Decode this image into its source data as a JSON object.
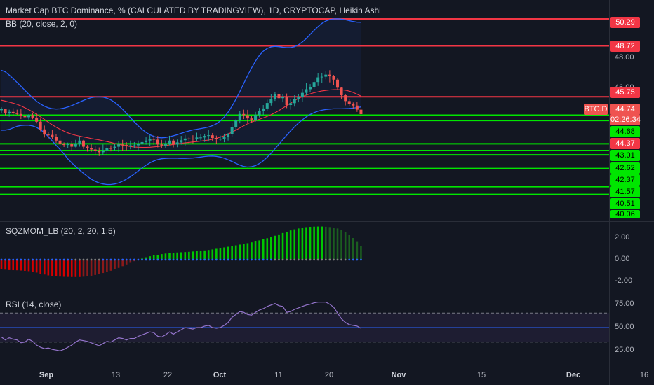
{
  "header": {
    "title": "Market Cap BTC Dominance, % (CALCULATED BY TRADINGVIEW), 1D, CRYPTOCAP, Heikin Ashi",
    "bb_label": "BB (20, close, 2, 0)",
    "sqzmom_label": "SQZMOM_LB (20, 2, 20, 1.5)",
    "rsi_label": "RSI (14, close)"
  },
  "price_axis": {
    "ticks": [
      "48.00",
      "46.00"
    ],
    "tags": [
      {
        "text": "50.29",
        "bg": "#f23645",
        "fg": "#ffffff"
      },
      {
        "text": "48.72",
        "bg": "#f23645",
        "fg": "#ffffff"
      },
      {
        "text": "45.75",
        "bg": "#f23645",
        "fg": "#ffffff"
      },
      {
        "text": "44.74",
        "bg": "#ef5350",
        "fg": "#ffffff"
      },
      {
        "text": "02:26:34",
        "bg": "#ef5350",
        "fg": "#ffffff"
      },
      {
        "text": "44.68",
        "bg": "#00e600",
        "fg": "#000000"
      },
      {
        "text": "44.37",
        "bg": "#f23645",
        "fg": "#ffffff"
      },
      {
        "text": "43.01",
        "bg": "#00e600",
        "fg": "#000000"
      },
      {
        "text": "42.62",
        "bg": "#00e600",
        "fg": "#000000"
      },
      {
        "text": "42.37",
        "bg": "#00e600",
        "fg": "#000000"
      },
      {
        "text": "41.57",
        "bg": "#00e600",
        "fg": "#000000"
      },
      {
        "text": "40.51",
        "bg": "#00e600",
        "fg": "#000000"
      },
      {
        "text": "40.06",
        "bg": "#00e600",
        "fg": "#000000"
      }
    ],
    "symbol_tag": "BTC.D"
  },
  "sqz_axis": [
    "2.00",
    "0.00",
    "-2.00"
  ],
  "rsi_axis": [
    "75.00",
    "50.00",
    "25.00"
  ],
  "time_axis": [
    {
      "label": "Sep",
      "bold": true
    },
    {
      "label": "13",
      "bold": false
    },
    {
      "label": "22",
      "bold": false
    },
    {
      "label": "Oct",
      "bold": true
    },
    {
      "label": "11",
      "bold": false
    },
    {
      "label": "20",
      "bold": false
    },
    {
      "label": "Nov",
      "bold": true
    },
    {
      "label": "15",
      "bold": false
    },
    {
      "label": "Dec",
      "bold": true
    },
    {
      "label": "16",
      "bold": false
    }
  ],
  "colors": {
    "background": "#131722",
    "up": "#26a69a",
    "down": "#ef5350",
    "bb": "#2962ff",
    "basis": "#f23645",
    "resistance": "#f23645",
    "support": "#00e600",
    "rsi": "#9575cd"
  },
  "chart_data": [
    {
      "type": "candlestick",
      "title": "Market Cap BTC Dominance, % (CALCULATED BY TRADINGVIEW), 1D, CRYPTOCAP, Heikin Ashi",
      "ylim": [
        40.0,
        50.7
      ],
      "resistance_levels": [
        50.29,
        48.72,
        45.75
      ],
      "support_levels": [
        44.68,
        44.37,
        43.01,
        42.62,
        42.37,
        41.57,
        40.51,
        40.06
      ],
      "current_price": 44.74,
      "candles": [
        [
          44.97,
          45.14,
          44.79,
          45.04
        ],
        [
          45.04,
          45.05,
          44.68,
          44.79
        ],
        [
          44.79,
          45.0,
          44.59,
          44.87
        ],
        [
          44.87,
          45.09,
          44.65,
          44.81
        ],
        [
          44.81,
          45.0,
          44.7,
          44.75
        ],
        [
          44.75,
          45.03,
          44.45,
          44.62
        ],
        [
          44.62,
          44.91,
          44.48,
          44.56
        ],
        [
          44.56,
          44.73,
          44.43,
          44.69
        ],
        [
          44.69,
          44.81,
          44.44,
          44.54
        ],
        [
          44.54,
          44.8,
          44.2,
          44.3
        ],
        [
          44.3,
          44.48,
          43.74,
          43.85
        ],
        [
          43.85,
          44.07,
          43.38,
          43.55
        ],
        [
          43.55,
          43.71,
          43.31,
          43.53
        ],
        [
          43.53,
          43.81,
          43.31,
          43.43
        ],
        [
          43.43,
          43.56,
          43.07,
          43.2
        ],
        [
          43.2,
          43.58,
          42.82,
          43.0
        ],
        [
          43.0,
          43.09,
          42.82,
          42.94
        ],
        [
          42.94,
          43.08,
          42.77,
          43.0
        ],
        [
          43.0,
          43.15,
          42.58,
          42.84
        ],
        [
          42.84,
          43.24,
          42.8,
          43.03
        ],
        [
          43.03,
          43.45,
          42.84,
          43.2
        ],
        [
          43.2,
          43.24,
          42.71,
          42.84
        ],
        [
          42.84,
          42.94,
          42.56,
          42.76
        ],
        [
          42.76,
          42.98,
          42.55,
          42.68
        ],
        [
          42.68,
          42.86,
          42.4,
          42.6
        ],
        [
          42.6,
          42.8,
          42.3,
          42.52
        ],
        [
          42.52,
          42.97,
          42.37,
          42.63
        ],
        [
          42.63,
          42.96,
          42.37,
          42.76
        ],
        [
          42.76,
          42.92,
          42.57,
          42.74
        ],
        [
          42.74,
          43.02,
          42.63,
          42.84
        ],
        [
          42.84,
          43.16,
          42.54,
          42.97
        ],
        [
          42.97,
          43.24,
          42.6,
          42.94
        ],
        [
          42.94,
          43.1,
          42.64,
          42.87
        ],
        [
          42.87,
          43.2,
          42.69,
          42.92
        ],
        [
          42.92,
          43.11,
          42.74,
          42.92
        ],
        [
          42.92,
          43.2,
          42.63,
          43.01
        ],
        [
          43.01,
          43.24,
          42.85,
          43.11
        ],
        [
          43.11,
          43.39,
          42.96,
          43.2
        ],
        [
          43.2,
          43.51,
          42.89,
          43.29
        ],
        [
          43.29,
          43.5,
          42.95,
          43.25
        ],
        [
          43.25,
          43.47,
          42.8,
          42.97
        ],
        [
          42.97,
          43.24,
          42.76,
          42.91
        ],
        [
          42.91,
          43.21,
          42.76,
          43.03
        ],
        [
          43.03,
          43.48,
          42.92,
          43.2
        ],
        [
          43.2,
          43.27,
          42.8,
          42.97
        ],
        [
          42.97,
          43.26,
          42.81,
          43.09
        ],
        [
          43.09,
          43.47,
          42.96,
          43.22
        ],
        [
          43.22,
          43.53,
          42.9,
          43.32
        ],
        [
          43.32,
          43.42,
          43.03,
          43.31
        ],
        [
          43.31,
          43.51,
          43.04,
          43.3
        ],
        [
          43.3,
          43.66,
          43.16,
          43.38
        ],
        [
          43.38,
          43.58,
          43.2,
          43.38
        ],
        [
          43.38,
          43.6,
          43.12,
          43.47
        ],
        [
          43.47,
          43.8,
          43.16,
          43.51
        ],
        [
          43.51,
          43.64,
          43.19,
          43.35
        ],
        [
          43.35,
          43.49,
          43.0,
          43.29
        ],
        [
          43.29,
          43.49,
          43.15,
          43.3
        ],
        [
          43.3,
          43.6,
          43.1,
          43.43
        ],
        [
          43.43,
          43.64,
          43.2,
          43.56
        ],
        [
          43.56,
          44.23,
          43.43,
          43.99
        ],
        [
          43.99,
          44.44,
          43.84,
          44.37
        ],
        [
          44.37,
          44.93,
          44.2,
          44.75
        ],
        [
          44.75,
          45.0,
          44.45,
          44.68
        ],
        [
          44.68,
          44.99,
          44.22,
          44.49
        ],
        [
          44.49,
          44.63,
          44.26,
          44.41
        ],
        [
          44.41,
          44.87,
          44.3,
          44.69
        ],
        [
          44.69,
          45.1,
          44.55,
          44.92
        ],
        [
          44.92,
          45.27,
          44.7,
          45.07
        ],
        [
          45.07,
          45.58,
          44.95,
          45.39
        ],
        [
          45.39,
          45.91,
          45.24,
          45.6
        ],
        [
          45.6,
          46.01,
          45.51,
          45.91
        ],
        [
          45.91,
          46.08,
          45.45,
          45.67
        ],
        [
          45.67,
          45.91,
          45.43,
          45.72
        ],
        [
          45.72,
          45.94,
          45.09,
          45.27
        ],
        [
          45.27,
          45.61,
          45.0,
          45.38
        ],
        [
          45.38,
          45.84,
          45.18,
          45.61
        ],
        [
          45.61,
          45.92,
          45.43,
          45.74
        ],
        [
          45.74,
          46.21,
          45.47,
          45.98
        ],
        [
          45.98,
          46.54,
          45.83,
          46.19
        ],
        [
          46.19,
          46.49,
          46.02,
          46.31
        ],
        [
          46.31,
          46.77,
          46.2,
          46.61
        ],
        [
          46.61,
          47.14,
          46.38,
          46.88
        ],
        [
          46.88,
          47.15,
          46.54,
          46.92
        ],
        [
          46.92,
          47.25,
          46.77,
          47.04
        ],
        [
          47.04,
          47.3,
          46.59,
          46.95
        ],
        [
          46.95,
          47.02,
          46.45,
          46.75
        ],
        [
          46.75,
          46.83,
          46.18,
          46.28
        ],
        [
          46.28,
          46.33,
          45.64,
          45.84
        ],
        [
          45.84,
          45.9,
          45.25,
          45.5
        ],
        [
          45.5,
          45.63,
          45.2,
          45.34
        ],
        [
          45.34,
          45.42,
          45.03,
          45.24
        ],
        [
          45.24,
          45.47,
          44.87,
          45.0
        ],
        [
          45.0,
          45.21,
          44.54,
          44.74
        ]
      ],
      "bb_upper": [
        47.29,
        47.2,
        47.02,
        46.81,
        46.59,
        46.36,
        46.13,
        45.9,
        45.69,
        45.49,
        45.33,
        45.2,
        45.11,
        45.06,
        45.04,
        45.05,
        45.09,
        45.16,
        45.24,
        45.34,
        45.44,
        45.54,
        45.63,
        45.7,
        45.74,
        45.75,
        45.73,
        45.67,
        45.57,
        45.42,
        45.24,
        45.02,
        44.79,
        44.54,
        44.29,
        44.06,
        43.85,
        43.68,
        43.54,
        43.44,
        43.38,
        43.36,
        43.38,
        43.42,
        43.48,
        43.55,
        43.62,
        43.7,
        43.76,
        43.82,
        43.86,
        43.9,
        43.94,
        43.99,
        44.07,
        44.18,
        44.34,
        44.57,
        44.86,
        45.2,
        45.61,
        46.05,
        46.52,
        46.99,
        47.43,
        47.83,
        48.16,
        48.41,
        48.57,
        48.66,
        48.69,
        48.67,
        48.64,
        48.62,
        48.62,
        48.67,
        48.78,
        48.95,
        49.15,
        49.39,
        49.62,
        49.84,
        50.03,
        50.17,
        50.25,
        50.29,
        50.3,
        50.28,
        50.24,
        50.19,
        50.14,
        50.1,
        50.09
      ],
      "bb_basis": [
        45.55,
        45.5,
        45.44,
        45.38,
        45.31,
        45.22,
        45.11,
        45.0,
        44.87,
        44.73,
        44.58,
        44.43,
        44.27,
        44.12,
        43.98,
        43.86,
        43.75,
        43.65,
        43.57,
        43.51,
        43.46,
        43.41,
        43.37,
        43.32,
        43.28,
        43.24,
        43.19,
        43.14,
        43.09,
        43.03,
        42.98,
        42.93,
        42.89,
        42.85,
        42.82,
        42.81,
        42.8,
        42.8,
        42.81,
        42.83,
        42.85,
        42.88,
        42.91,
        42.94,
        42.97,
        43.01,
        43.04,
        43.07,
        43.09,
        43.12,
        43.14,
        43.17,
        43.2,
        43.23,
        43.28,
        43.33,
        43.4,
        43.48,
        43.58,
        43.69,
        43.81,
        43.94,
        44.06,
        44.18,
        44.28,
        44.36,
        44.44,
        44.52,
        44.61,
        44.71,
        44.82,
        44.95,
        45.09,
        45.24,
        45.39,
        45.53,
        45.65,
        45.76,
        45.85,
        45.92,
        45.99,
        46.04,
        46.09,
        46.12,
        46.15,
        46.17,
        46.17,
        46.16,
        46.13,
        46.08,
        46.0,
        45.9,
        45.79
      ],
      "bb_lower": [
        43.8,
        43.81,
        43.85,
        43.94,
        44.03,
        44.08,
        44.09,
        44.09,
        44.05,
        43.97,
        43.83,
        43.66,
        43.43,
        43.18,
        42.92,
        42.68,
        42.42,
        42.13,
        41.9,
        41.69,
        41.48,
        41.29,
        41.11,
        40.95,
        40.82,
        40.73,
        40.67,
        40.64,
        40.64,
        40.67,
        40.73,
        40.83,
        40.95,
        41.09,
        41.25,
        41.43,
        41.6,
        41.76,
        41.9,
        42.01,
        42.09,
        42.14,
        42.16,
        42.17,
        42.17,
        42.17,
        42.16,
        42.16,
        42.17,
        42.18,
        42.21,
        42.24,
        42.27,
        42.29,
        42.3,
        42.28,
        42.24,
        42.17,
        42.08,
        41.98,
        41.87,
        41.77,
        41.69,
        41.66,
        41.68,
        41.74,
        41.86,
        42.02,
        42.23,
        42.46,
        42.72,
        42.98,
        43.25,
        43.51,
        43.77,
        44.0,
        44.22,
        44.41,
        44.58,
        44.72,
        44.83,
        44.91,
        44.97,
        45.01,
        45.03,
        45.05,
        45.05,
        45.05,
        45.06,
        45.07,
        45.09,
        45.12,
        45.16
      ],
      "sqz_momentum": [
        -0.9,
        -0.92,
        -0.96,
        -0.97,
        -0.98,
        -1.0,
        -1.03,
        -1.06,
        -1.11,
        -1.19,
        -1.29,
        -1.37,
        -1.45,
        -1.5,
        -1.54,
        -1.56,
        -1.58,
        -1.59,
        -1.6,
        -1.6,
        -1.6,
        -1.57,
        -1.53,
        -1.48,
        -1.41,
        -1.33,
        -1.23,
        -1.13,
        -1.02,
        -0.89,
        -0.76,
        -0.6,
        -0.44,
        -0.29,
        -0.14,
        0.0,
        0.11,
        0.22,
        0.31,
        0.39,
        0.45,
        0.51,
        0.56,
        0.6,
        0.63,
        0.66,
        0.68,
        0.7,
        0.72,
        0.75,
        0.78,
        0.81,
        0.85,
        0.89,
        0.94,
        1.0,
        1.06,
        1.13,
        1.19,
        1.26,
        1.32,
        1.39,
        1.45,
        1.52,
        1.6,
        1.68,
        1.78,
        1.87,
        1.98,
        2.09,
        2.21,
        2.33,
        2.46,
        2.58,
        2.7,
        2.8,
        2.88,
        2.95,
        3.0,
        3.03,
        3.05,
        3.06,
        3.06,
        3.04,
        3.01,
        2.96,
        2.88,
        2.75,
        2.56,
        2.31,
        2.0,
        1.64,
        1.25
      ],
      "rsi": [
        37.0,
        33.0,
        36.0,
        34.0,
        33.0,
        29.0,
        30.0,
        34.0,
        31.0,
        26.0,
        23.0,
        21.0,
        22.0,
        20.0,
        19.0,
        18.0,
        20.0,
        23.0,
        26.0,
        30.0,
        33.0,
        32.0,
        31.0,
        29.0,
        27.0,
        25.0,
        28.0,
        31.0,
        30.0,
        33.0,
        36.0,
        35.0,
        33.0,
        35.0,
        35.0,
        38.0,
        40.0,
        42.0,
        44.0,
        43.0,
        38.0,
        37.0,
        40.0,
        44.0,
        41.0,
        44.0,
        47.0,
        50.0,
        49.0,
        48.0,
        50.0,
        50.0,
        52.0,
        53.0,
        50.0,
        49.0,
        50.0,
        53.0,
        57.0,
        64.0,
        68.0,
        72.0,
        71.0,
        68.0,
        67.0,
        71.0,
        74.0,
        76.0,
        79.0,
        81.0,
        83.0,
        80.0,
        79.0,
        71.0,
        72.0,
        75.0,
        77.0,
        79.0,
        81.0,
        82.0,
        84.0,
        85.0,
        85.0,
        85.0,
        82.0,
        78.0,
        70.0,
        62.0,
        57.0,
        54.0,
        53.0,
        52.0,
        49.0
      ]
    }
  ]
}
